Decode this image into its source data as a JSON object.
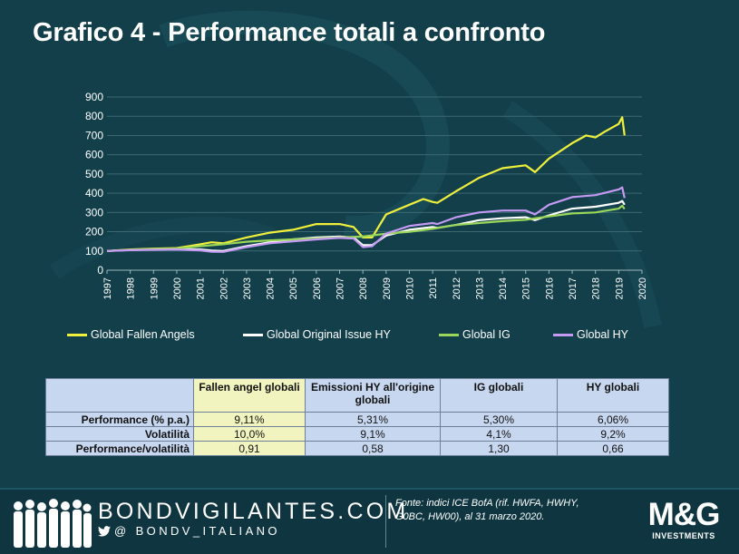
{
  "title": "Grafico 4 - Performance totali a confronto",
  "chart_data": {
    "type": "line",
    "title": "",
    "xlabel": "",
    "ylabel": "",
    "ylim": [
      0,
      900
    ],
    "yticks": [
      "0",
      "100",
      "200",
      "300",
      "400",
      "500",
      "600",
      "700",
      "800",
      "900"
    ],
    "xlim": [
      1997,
      2020
    ],
    "xticks": [
      "1997",
      "1998",
      "1999",
      "2000",
      "2001",
      "2002",
      "2003",
      "2004",
      "2005",
      "2006",
      "2007",
      "2008",
      "2009",
      "2010",
      "2011",
      "2012",
      "2013",
      "2014",
      "2015",
      "2016",
      "2017",
      "2018",
      "2019",
      "2020"
    ],
    "grid": "horizontal",
    "legend_position": "bottom",
    "series": [
      {
        "name": "Global Fallen Angels",
        "color": "#f0f03c",
        "x": [
          1997,
          1998,
          1999,
          2000,
          2001,
          2001.5,
          2002,
          2003,
          2004,
          2005,
          2006,
          2007,
          2007.6,
          2008.0,
          2008.4,
          2009,
          2010,
          2010.6,
          2011,
          2011.2,
          2011.6,
          2012,
          2013,
          2014,
          2015,
          2015.4,
          2016,
          2017,
          2017.6,
          2018,
          2018.4,
          2019,
          2019.15,
          2019.25
        ],
        "y": [
          100,
          108,
          112,
          115,
          135,
          145,
          140,
          170,
          195,
          210,
          240,
          240,
          225,
          170,
          170,
          290,
          340,
          370,
          355,
          350,
          380,
          410,
          480,
          530,
          545,
          510,
          580,
          660,
          700,
          690,
          720,
          760,
          795,
          700
        ]
      },
      {
        "name": "Global Original Issue HY",
        "color": "#ffffff",
        "x": [
          1997,
          1998,
          1999,
          2000,
          2001,
          2001.5,
          2002,
          2003,
          2004,
          2005,
          2006,
          2007,
          2007.6,
          2008.0,
          2008.4,
          2009,
          2010,
          2011,
          2011.2,
          2012,
          2013,
          2014,
          2015,
          2015.4,
          2016,
          2017,
          2018,
          2019,
          2019.15,
          2019.25
        ],
        "y": [
          100,
          105,
          108,
          110,
          108,
          102,
          100,
          125,
          145,
          160,
          170,
          175,
          170,
          130,
          130,
          180,
          210,
          225,
          220,
          235,
          260,
          270,
          275,
          260,
          285,
          320,
          330,
          350,
          360,
          340
        ]
      },
      {
        "name": "Global IG",
        "color": "#9ad65a",
        "x": [
          1997,
          1998,
          1999,
          2000,
          2001,
          2002,
          2003,
          2004,
          2005,
          2006,
          2007,
          2008,
          2009,
          2010,
          2011,
          2012,
          2013,
          2014,
          2015,
          2016,
          2017,
          2018,
          2019,
          2019.15,
          2019.25
        ],
        "y": [
          100,
          106,
          110,
          112,
          125,
          135,
          148,
          155,
          160,
          165,
          170,
          175,
          190,
          200,
          215,
          235,
          245,
          255,
          262,
          280,
          295,
          300,
          320,
          335,
          318
        ]
      },
      {
        "name": "Global HY",
        "color": "#c49af4",
        "x": [
          1997,
          1998,
          1999,
          2000,
          2001,
          2001.5,
          2002,
          2003,
          2004,
          2005,
          2006,
          2007,
          2007.6,
          2008.0,
          2008.4,
          2009,
          2010,
          2011,
          2011.2,
          2012,
          2013,
          2014,
          2015,
          2015.4,
          2016,
          2017,
          2018,
          2019,
          2019.15,
          2019.25
        ],
        "y": [
          100,
          104,
          106,
          108,
          103,
          96,
          95,
          120,
          140,
          150,
          160,
          168,
          165,
          120,
          125,
          190,
          230,
          245,
          240,
          275,
          300,
          310,
          310,
          290,
          340,
          380,
          390,
          420,
          430,
          375
        ]
      }
    ]
  },
  "table": {
    "headers": [
      "Fallen angel globali",
      "Emissioni HY all'origine globali",
      "IG globali",
      "HY globali"
    ],
    "rows": [
      {
        "label": "Performance (% p.a.)",
        "values": [
          "9,11%",
          "5,31%",
          "5,30%",
          "6,06%"
        ]
      },
      {
        "label": "Volatilità",
        "values": [
          "10,0%",
          "9,1%",
          "4,1%",
          "9,2%"
        ]
      },
      {
        "label": "Performance/volatilità",
        "values": [
          "0,91",
          "0,58",
          "1,30",
          "0,66"
        ]
      }
    ]
  },
  "footer": {
    "brand": "BONDVIGILANTES.COM",
    "handle": "@ BONDV_ITALIANO",
    "source": "Fonte: indici ICE BofA (rif. HWFA, HWHY, G0BC, HW00), al 31 marzo 2020.",
    "logo_main": "M&G",
    "logo_sub": "INVESTMENTS"
  }
}
